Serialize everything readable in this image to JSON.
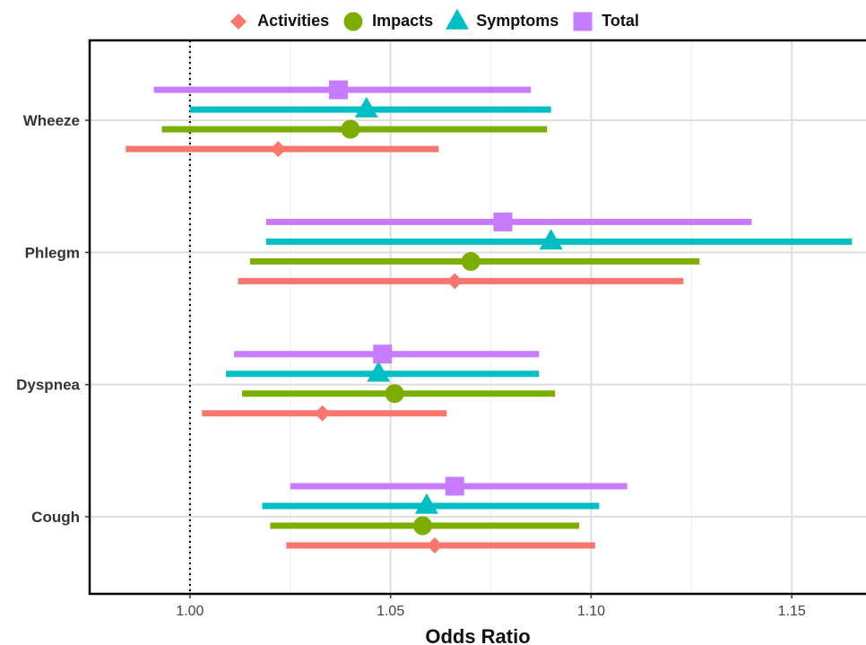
{
  "chart_data": {
    "type": "forest",
    "title": "",
    "xlabel": "Odds Ratio",
    "ylabel": "",
    "xlim": [
      0.975,
      1.1685
    ],
    "xticks": [
      1.0,
      1.05,
      1.1,
      1.15
    ],
    "xtick_labels": [
      "1.00",
      "1.05",
      "1.10",
      "1.15"
    ],
    "reference_line": 1.0,
    "categories": [
      "Cough",
      "Dyspnea",
      "Phlegm",
      "Wheeze"
    ],
    "legend_position": "top",
    "grid": true,
    "series": [
      {
        "name": "Activities",
        "color": "#F8766D",
        "marker": "diamond",
        "estimates": [
          1.061,
          1.033,
          1.066,
          1.022
        ],
        "lower": [
          1.024,
          1.003,
          1.012,
          0.984
        ],
        "upper": [
          1.101,
          1.064,
          1.123,
          1.062
        ]
      },
      {
        "name": "Impacts",
        "color": "#7CAE00",
        "marker": "circle",
        "estimates": [
          1.058,
          1.051,
          1.07,
          1.04
        ],
        "lower": [
          1.02,
          1.013,
          1.015,
          0.993
        ],
        "upper": [
          1.097,
          1.091,
          1.127,
          1.089
        ]
      },
      {
        "name": "Symptoms",
        "color": "#00BFC4",
        "marker": "triangle",
        "estimates": [
          1.059,
          1.047,
          1.09,
          1.044
        ],
        "lower": [
          1.018,
          1.009,
          1.019,
          1.0
        ],
        "upper": [
          1.102,
          1.087,
          1.165,
          1.09
        ]
      },
      {
        "name": "Total",
        "color": "#C77CFF",
        "marker": "square",
        "estimates": [
          1.066,
          1.048,
          1.078,
          1.037
        ],
        "lower": [
          1.025,
          1.011,
          1.019,
          0.991
        ],
        "upper": [
          1.109,
          1.087,
          1.14,
          1.085
        ]
      }
    ]
  }
}
